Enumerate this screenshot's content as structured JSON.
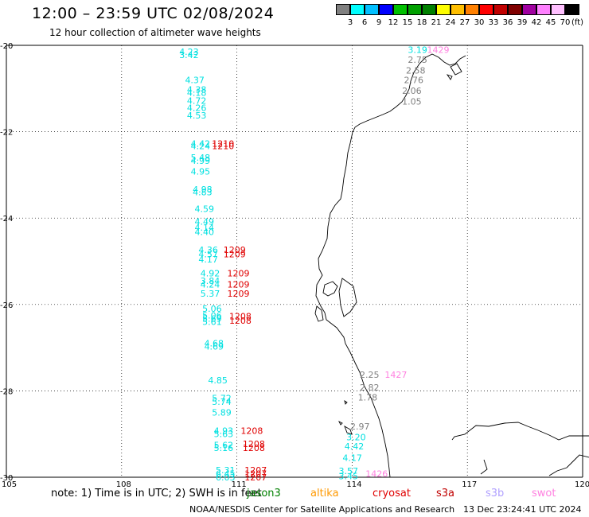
{
  "header": {
    "title": "12:00 – 23:59 UTC 02/08/2024",
    "subtitle": "12 hour collection of altimeter wave heights"
  },
  "color_scale": {
    "swatches": [
      "#808080",
      "#00ffff",
      "#00bfff",
      "#0000ff",
      "#00c000",
      "#00a000",
      "#008000",
      "#ffff00",
      "#ffbf00",
      "#ff8000",
      "#ff0000",
      "#c00000",
      "#800000",
      "#a000a0",
      "#ff80ff",
      "#ffc0ff",
      "#000000"
    ],
    "ticks": [
      "3",
      "6",
      "9",
      "12",
      "15",
      "18",
      "21",
      "24",
      "27",
      "30",
      "33",
      "36",
      "39",
      "42",
      "45",
      "70"
    ],
    "unit": "(ft)"
  },
  "map": {
    "lon_range": [
      105,
      120
    ],
    "lat_range": [
      -30,
      -20
    ],
    "lon_labels": [
      "105",
      "108",
      "111",
      "114",
      "117",
      "120"
    ],
    "lat_labels": [
      "-20",
      "-22",
      "-24",
      "-26",
      "-28",
      "-30"
    ]
  },
  "observations": [
    {
      "lon": 109.5,
      "lat": -20.15,
      "text": "4.23",
      "color": "#00e0e0"
    },
    {
      "lon": 109.5,
      "lat": -20.22,
      "text": "3.42",
      "color": "#00e0e0"
    },
    {
      "lon": 109.65,
      "lat": -20.8,
      "text": "4.37",
      "color": "#00e0e0"
    },
    {
      "lon": 109.7,
      "lat": -21.02,
      "text": "4.38",
      "color": "#00e0e0"
    },
    {
      "lon": 109.7,
      "lat": -21.1,
      "text": "4.18",
      "color": "#00e0e0"
    },
    {
      "lon": 109.7,
      "lat": -21.28,
      "text": "4.72",
      "color": "#00e0e0"
    },
    {
      "lon": 109.7,
      "lat": -21.45,
      "text": "4.26",
      "color": "#00e0e0"
    },
    {
      "lon": 109.7,
      "lat": -21.62,
      "text": "4.53",
      "color": "#00e0e0"
    },
    {
      "lon": 109.8,
      "lat": -22.27,
      "text": "4.42",
      "color": "#00e0e0"
    },
    {
      "lon": 109.8,
      "lat": -22.33,
      "text": "4.24",
      "color": "#00e0e0"
    },
    {
      "lon": 110.35,
      "lat": -22.27,
      "text": "1210",
      "color": "#e00000"
    },
    {
      "lon": 110.35,
      "lat": -22.33,
      "text": "1210",
      "color": "#e00000"
    },
    {
      "lon": 109.8,
      "lat": -22.6,
      "text": "5.48",
      "color": "#00e0e0"
    },
    {
      "lon": 109.8,
      "lat": -22.67,
      "text": "4.99",
      "color": "#00e0e0"
    },
    {
      "lon": 109.8,
      "lat": -22.92,
      "text": "4.95",
      "color": "#00e0e0"
    },
    {
      "lon": 109.85,
      "lat": -23.33,
      "text": "4.98",
      "color": "#00e0e0"
    },
    {
      "lon": 109.85,
      "lat": -23.4,
      "text": "4.83",
      "color": "#00e0e0"
    },
    {
      "lon": 109.9,
      "lat": -23.78,
      "text": "4.59",
      "color": "#00e0e0"
    },
    {
      "lon": 109.9,
      "lat": -24.08,
      "text": "4.49",
      "color": "#00e0e0"
    },
    {
      "lon": 109.9,
      "lat": -24.22,
      "text": "4.14",
      "color": "#00e0e0"
    },
    {
      "lon": 109.9,
      "lat": -24.32,
      "text": "4.40",
      "color": "#00e0e0"
    },
    {
      "lon": 110.0,
      "lat": -24.73,
      "text": "4.36",
      "color": "#00e0e0"
    },
    {
      "lon": 110.0,
      "lat": -24.83,
      "text": "4.57",
      "color": "#00e0e0"
    },
    {
      "lon": 110.0,
      "lat": -24.95,
      "text": "4.17",
      "color": "#00e0e0"
    },
    {
      "lon": 110.65,
      "lat": -24.73,
      "text": "1209",
      "color": "#e00000"
    },
    {
      "lon": 110.65,
      "lat": -24.83,
      "text": "1209",
      "color": "#e00000"
    },
    {
      "lon": 110.05,
      "lat": -25.28,
      "text": "4.92",
      "color": "#00e0e0"
    },
    {
      "lon": 110.05,
      "lat": -25.45,
      "text": "3.84",
      "color": "#00e0e0"
    },
    {
      "lon": 110.05,
      "lat": -25.53,
      "text": "4.24",
      "color": "#00e0e0"
    },
    {
      "lon": 110.75,
      "lat": -25.28,
      "text": "1209",
      "color": "#e00000"
    },
    {
      "lon": 110.75,
      "lat": -25.53,
      "text": "1209",
      "color": "#e00000"
    },
    {
      "lon": 110.75,
      "lat": -25.75,
      "text": "1209",
      "color": "#e00000"
    },
    {
      "lon": 110.05,
      "lat": -25.75,
      "text": "5.37",
      "color": "#00e0e0"
    },
    {
      "lon": 110.1,
      "lat": -26.1,
      "text": "5.06",
      "color": "#00e0e0"
    },
    {
      "lon": 110.1,
      "lat": -26.25,
      "text": "5.06",
      "color": "#00e0e0"
    },
    {
      "lon": 110.1,
      "lat": -26.33,
      "text": "5.69",
      "color": "#00e0e0"
    },
    {
      "lon": 110.1,
      "lat": -26.4,
      "text": "5.61",
      "color": "#00e0e0"
    },
    {
      "lon": 110.8,
      "lat": -26.27,
      "text": "1208",
      "color": "#e00000"
    },
    {
      "lon": 110.8,
      "lat": -26.37,
      "text": "1208",
      "color": "#e00000"
    },
    {
      "lon": 110.15,
      "lat": -26.9,
      "text": "4.68",
      "color": "#00e0e0"
    },
    {
      "lon": 110.15,
      "lat": -26.97,
      "text": "4.69",
      "color": "#00e0e0"
    },
    {
      "lon": 110.25,
      "lat": -27.75,
      "text": "4.85",
      "color": "#00e0e0"
    },
    {
      "lon": 110.35,
      "lat": -28.17,
      "text": "5.72",
      "color": "#00e0e0"
    },
    {
      "lon": 110.35,
      "lat": -28.25,
      "text": "5.74",
      "color": "#00e0e0"
    },
    {
      "lon": 110.35,
      "lat": -28.5,
      "text": "5.89",
      "color": "#00e0e0"
    },
    {
      "lon": 110.4,
      "lat": -28.92,
      "text": "4.93",
      "color": "#00e0e0"
    },
    {
      "lon": 110.4,
      "lat": -29.0,
      "text": "5.63",
      "color": "#00e0e0"
    },
    {
      "lon": 111.1,
      "lat": -28.92,
      "text": "1208",
      "color": "#e00000"
    },
    {
      "lon": 110.4,
      "lat": -29.25,
      "text": "5.62",
      "color": "#00e0e0"
    },
    {
      "lon": 110.4,
      "lat": -29.32,
      "text": "5.16",
      "color": "#00e0e0"
    },
    {
      "lon": 111.15,
      "lat": -29.23,
      "text": "1208",
      "color": "#e00000"
    },
    {
      "lon": 111.15,
      "lat": -29.32,
      "text": "1208",
      "color": "#e00000"
    },
    {
      "lon": 110.45,
      "lat": -29.83,
      "text": "5.31",
      "color": "#00e0e0"
    },
    {
      "lon": 110.45,
      "lat": -29.92,
      "text": "6.45",
      "color": "#00e0e0"
    },
    {
      "lon": 110.45,
      "lat": -30.0,
      "text": "6.03",
      "color": "#00e0e0"
    },
    {
      "lon": 111.2,
      "lat": -29.83,
      "text": "1207",
      "color": "#e00000"
    },
    {
      "lon": 111.2,
      "lat": -29.92,
      "text": "1207",
      "color": "#e00000"
    },
    {
      "lon": 111.2,
      "lat": -30.0,
      "text": "1207",
      "color": "#e00000"
    },
    {
      "lon": 115.45,
      "lat": -20.1,
      "text": "3.19",
      "color": "#00e0e0"
    },
    {
      "lon": 115.95,
      "lat": -20.1,
      "text": "1429",
      "color": "#ff80e0"
    },
    {
      "lon": 115.45,
      "lat": -20.33,
      "text": "2.75",
      "color": "#808080"
    },
    {
      "lon": 115.4,
      "lat": -20.58,
      "text": "2.58",
      "color": "#808080"
    },
    {
      "lon": 115.35,
      "lat": -20.8,
      "text": "2.76",
      "color": "#808080"
    },
    {
      "lon": 115.3,
      "lat": -21.05,
      "text": "2.06",
      "color": "#808080"
    },
    {
      "lon": 115.3,
      "lat": -21.3,
      "text": "1.05",
      "color": "#808080"
    },
    {
      "lon": 114.2,
      "lat": -27.62,
      "text": "2.25",
      "color": "#808080"
    },
    {
      "lon": 114.85,
      "lat": -27.62,
      "text": "1427",
      "color": "#ff80e0"
    },
    {
      "lon": 114.2,
      "lat": -27.92,
      "text": "2.82",
      "color": "#808080"
    },
    {
      "lon": 114.15,
      "lat": -28.15,
      "text": "1.78",
      "color": "#808080"
    },
    {
      "lon": 113.95,
      "lat": -28.82,
      "text": "2.97",
      "color": "#808080"
    },
    {
      "lon": 113.85,
      "lat": -29.07,
      "text": "3.20",
      "color": "#00e0e0"
    },
    {
      "lon": 113.8,
      "lat": -29.28,
      "text": "4.42",
      "color": "#00e0e0"
    },
    {
      "lon": 113.75,
      "lat": -29.55,
      "text": "4.17",
      "color": "#00e0e0"
    },
    {
      "lon": 113.65,
      "lat": -29.85,
      "text": "3.57",
      "color": "#00e0e0"
    },
    {
      "lon": 113.65,
      "lat": -29.97,
      "text": "3.45",
      "color": "#00e0e0"
    },
    {
      "lon": 114.35,
      "lat": -29.92,
      "text": "1426",
      "color": "#ff80e0"
    }
  ],
  "footer": {
    "note": "note: 1) Time is in UTC; 2) SWH is in feet",
    "legend": [
      {
        "label": "jason3",
        "color": "#008000"
      },
      {
        "label": "altika",
        "color": "#ff9900"
      },
      {
        "label": "cryosat",
        "color": "#e00000"
      },
      {
        "label": "s3a",
        "color": "#c00000"
      },
      {
        "label": "s3b",
        "color": "#b0a0ff"
      },
      {
        "label": "swot",
        "color": "#ff80e0"
      }
    ],
    "credit": "NOAA/NESDIS Center for Satellite Applications and Research",
    "timestamp": "13 Dec 23:24:41 UTC 2024"
  }
}
